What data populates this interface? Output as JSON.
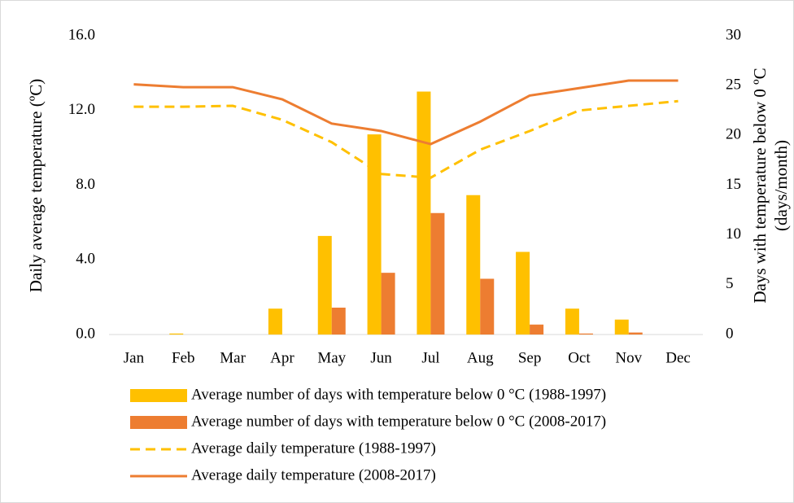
{
  "chart_data": {
    "type": "combo",
    "categories": [
      "Jan",
      "Feb",
      "Mar",
      "Apr",
      "May",
      "Jun",
      "Jul",
      "Aug",
      "Sep",
      "Oct",
      "Nov",
      "Dec"
    ],
    "ylabel": "Daily average temperature (ºC)",
    "y2label": [
      "Days with temperature below 0 ºC",
      "(days/month)"
    ],
    "ylim": [
      0,
      16
    ],
    "yticks": [
      {
        "value": 0,
        "label": "0.0"
      },
      {
        "value": 4,
        "label": "4.0"
      },
      {
        "value": 8,
        "label": "8.0"
      },
      {
        "value": 12,
        "label": "12.0"
      },
      {
        "value": 16,
        "label": "16.0"
      }
    ],
    "y2lim": [
      0,
      30
    ],
    "y2ticks": [
      0,
      5,
      10,
      15,
      20,
      25,
      30
    ],
    "series": [
      {
        "name": "Average number of days with temperature below 0 °C (1988-1997)",
        "type": "bar",
        "axis": "y2",
        "color": "#FFC000",
        "values": [
          0,
          0.1,
          0,
          2.6,
          9.9,
          20.1,
          24.4,
          14.0,
          8.3,
          2.6,
          1.5,
          0
        ]
      },
      {
        "name": "Average number of days with temperature below 0 °C (2008-2017)",
        "type": "bar",
        "axis": "y2",
        "color": "#ED7D31",
        "values": [
          0,
          0,
          0,
          0,
          2.7,
          6.2,
          12.2,
          5.6,
          1.0,
          0.1,
          0.2,
          0
        ]
      },
      {
        "name": "Average daily temperature (1988-1997)",
        "type": "line",
        "dashed": true,
        "color": "#FFC000",
        "values": [
          12.2,
          12.2,
          12.25,
          11.5,
          10.3,
          8.6,
          8.4,
          9.9,
          10.9,
          12.0,
          12.25,
          12.5
        ]
      },
      {
        "name": "Average daily temperature (2008-2017)",
        "type": "line",
        "dashed": false,
        "color": "#ED7D31",
        "values": [
          13.4,
          13.25,
          13.25,
          12.6,
          11.3,
          10.9,
          10.2,
          11.4,
          12.8,
          13.2,
          13.6,
          13.6
        ]
      }
    ]
  }
}
